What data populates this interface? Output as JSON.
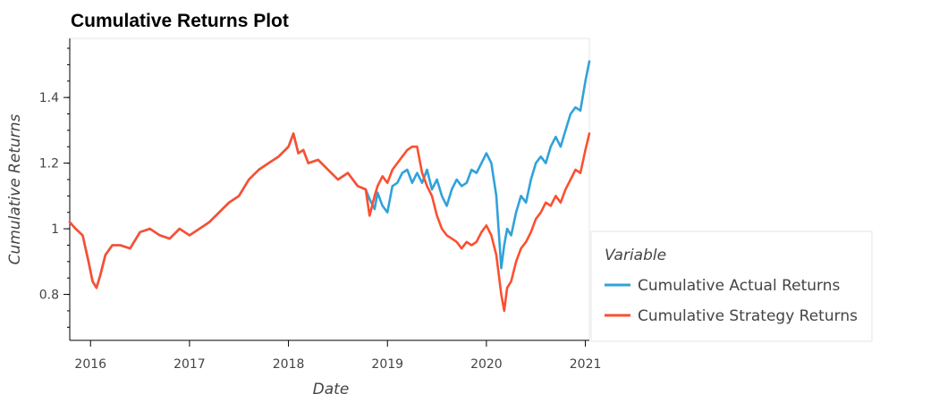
{
  "chart_data": {
    "type": "line",
    "title": "Cumulative Returns Plot",
    "xlabel": "Date",
    "ylabel": "Cumulative Returns",
    "xlim": [
      2015.79,
      2021.04
    ],
    "ylim": [
      0.66,
      1.58
    ],
    "x_ticks": [
      2016,
      2017,
      2018,
      2019,
      2020,
      2021
    ],
    "y_ticks": [
      {
        "value": 0.8,
        "label": "0.8"
      },
      {
        "value": 1.0,
        "label": "1"
      },
      {
        "value": 1.2,
        "label": "1.2"
      },
      {
        "value": 1.4,
        "label": "1.4"
      }
    ],
    "legend": {
      "title": "Variable",
      "placement": "right"
    },
    "series": [
      {
        "name": "Cumulative Actual Returns",
        "color": "#30a2da",
        "x": [
          2015.79,
          2015.85,
          2015.92,
          2015.98,
          2016.02,
          2016.06,
          2016.1,
          2016.15,
          2016.22,
          2016.3,
          2016.4,
          2016.5,
          2016.6,
          2016.7,
          2016.8,
          2016.9,
          2017.0,
          2017.1,
          2017.2,
          2017.3,
          2017.4,
          2017.5,
          2017.6,
          2017.7,
          2017.8,
          2017.9,
          2018.0,
          2018.05,
          2018.1,
          2018.15,
          2018.2,
          2018.3,
          2018.4,
          2018.5,
          2018.6,
          2018.7,
          2018.78,
          2018.82,
          2018.87,
          2018.9,
          2018.95,
          2019.0,
          2019.05,
          2019.1,
          2019.15,
          2019.2,
          2019.25,
          2019.3,
          2019.35,
          2019.4,
          2019.45,
          2019.5,
          2019.55,
          2019.6,
          2019.65,
          2019.7,
          2019.75,
          2019.8,
          2019.85,
          2019.9,
          2019.95,
          2020.0,
          2020.05,
          2020.1,
          2020.15,
          2020.18,
          2020.21,
          2020.25,
          2020.3,
          2020.35,
          2020.4,
          2020.45,
          2020.5,
          2020.55,
          2020.6,
          2020.65,
          2020.7,
          2020.75,
          2020.8,
          2020.85,
          2020.9,
          2020.95,
          2021.0,
          2021.04
        ],
        "values": [
          1.02,
          1.0,
          0.98,
          0.9,
          0.84,
          0.82,
          0.86,
          0.92,
          0.95,
          0.95,
          0.94,
          0.99,
          1.0,
          0.98,
          0.97,
          1.0,
          0.98,
          1.0,
          1.02,
          1.05,
          1.08,
          1.1,
          1.15,
          1.18,
          1.2,
          1.22,
          1.25,
          1.29,
          1.23,
          1.24,
          1.2,
          1.21,
          1.18,
          1.15,
          1.17,
          1.13,
          1.12,
          1.09,
          1.06,
          1.11,
          1.07,
          1.05,
          1.13,
          1.14,
          1.17,
          1.18,
          1.14,
          1.17,
          1.14,
          1.18,
          1.12,
          1.15,
          1.1,
          1.07,
          1.12,
          1.15,
          1.13,
          1.14,
          1.18,
          1.17,
          1.2,
          1.23,
          1.2,
          1.1,
          0.88,
          0.95,
          1.0,
          0.98,
          1.05,
          1.1,
          1.08,
          1.15,
          1.2,
          1.22,
          1.2,
          1.25,
          1.28,
          1.25,
          1.3,
          1.35,
          1.37,
          1.36,
          1.45,
          1.51
        ]
      },
      {
        "name": "Cumulative Strategy Returns",
        "color": "#fc4f30",
        "x": [
          2015.79,
          2015.85,
          2015.92,
          2015.98,
          2016.02,
          2016.06,
          2016.1,
          2016.15,
          2016.22,
          2016.3,
          2016.4,
          2016.5,
          2016.6,
          2016.7,
          2016.8,
          2016.9,
          2017.0,
          2017.1,
          2017.2,
          2017.3,
          2017.4,
          2017.5,
          2017.6,
          2017.7,
          2017.8,
          2017.9,
          2018.0,
          2018.05,
          2018.1,
          2018.15,
          2018.2,
          2018.3,
          2018.4,
          2018.5,
          2018.6,
          2018.7,
          2018.78,
          2018.82,
          2018.87,
          2018.9,
          2018.95,
          2019.0,
          2019.05,
          2019.1,
          2019.15,
          2019.2,
          2019.25,
          2019.3,
          2019.35,
          2019.4,
          2019.45,
          2019.5,
          2019.55,
          2019.6,
          2019.65,
          2019.7,
          2019.75,
          2019.8,
          2019.85,
          2019.9,
          2019.95,
          2020.0,
          2020.05,
          2020.1,
          2020.15,
          2020.18,
          2020.21,
          2020.25,
          2020.3,
          2020.35,
          2020.4,
          2020.45,
          2020.5,
          2020.55,
          2020.6,
          2020.65,
          2020.7,
          2020.75,
          2020.8,
          2020.85,
          2020.9,
          2020.95,
          2021.0,
          2021.04
        ],
        "values": [
          1.02,
          1.0,
          0.98,
          0.9,
          0.84,
          0.82,
          0.86,
          0.92,
          0.95,
          0.95,
          0.94,
          0.99,
          1.0,
          0.98,
          0.97,
          1.0,
          0.98,
          1.0,
          1.02,
          1.05,
          1.08,
          1.1,
          1.15,
          1.18,
          1.2,
          1.22,
          1.25,
          1.29,
          1.23,
          1.24,
          1.2,
          1.21,
          1.18,
          1.15,
          1.17,
          1.13,
          1.12,
          1.04,
          1.1,
          1.13,
          1.16,
          1.14,
          1.18,
          1.2,
          1.22,
          1.24,
          1.25,
          1.25,
          1.17,
          1.13,
          1.1,
          1.04,
          1.0,
          0.98,
          0.97,
          0.96,
          0.94,
          0.96,
          0.95,
          0.96,
          0.99,
          1.01,
          0.98,
          0.92,
          0.8,
          0.75,
          0.82,
          0.84,
          0.9,
          0.94,
          0.96,
          0.99,
          1.03,
          1.05,
          1.08,
          1.07,
          1.1,
          1.08,
          1.12,
          1.15,
          1.18,
          1.17,
          1.24,
          1.29
        ]
      }
    ]
  }
}
